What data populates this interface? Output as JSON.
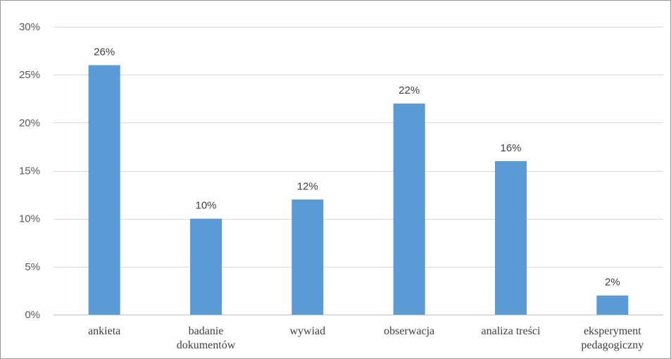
{
  "chart_data": {
    "type": "bar",
    "title": "",
    "xlabel": "",
    "ylabel": "",
    "categories": [
      [
        "ankieta"
      ],
      [
        "badanie",
        "dokumentów"
      ],
      [
        "wywiad"
      ],
      [
        "obserwacja"
      ],
      [
        "analiza treści"
      ],
      [
        "eksperyment",
        "pedagogiczny"
      ]
    ],
    "values": [
      26,
      10,
      12,
      22,
      16,
      2
    ],
    "data_labels": [
      "26%",
      "10%",
      "12%",
      "22%",
      "16%",
      "2%"
    ],
    "ylim": [
      0,
      30
    ],
    "yticks": [
      0,
      5,
      10,
      15,
      20,
      25,
      30
    ],
    "ytick_labels": [
      "0%",
      "5%",
      "10%",
      "15%",
      "20%",
      "25%",
      "30%"
    ],
    "grid": true,
    "legend": false,
    "bar_color": "#5b9bd5",
    "grid_color": "#d9d9d9"
  }
}
